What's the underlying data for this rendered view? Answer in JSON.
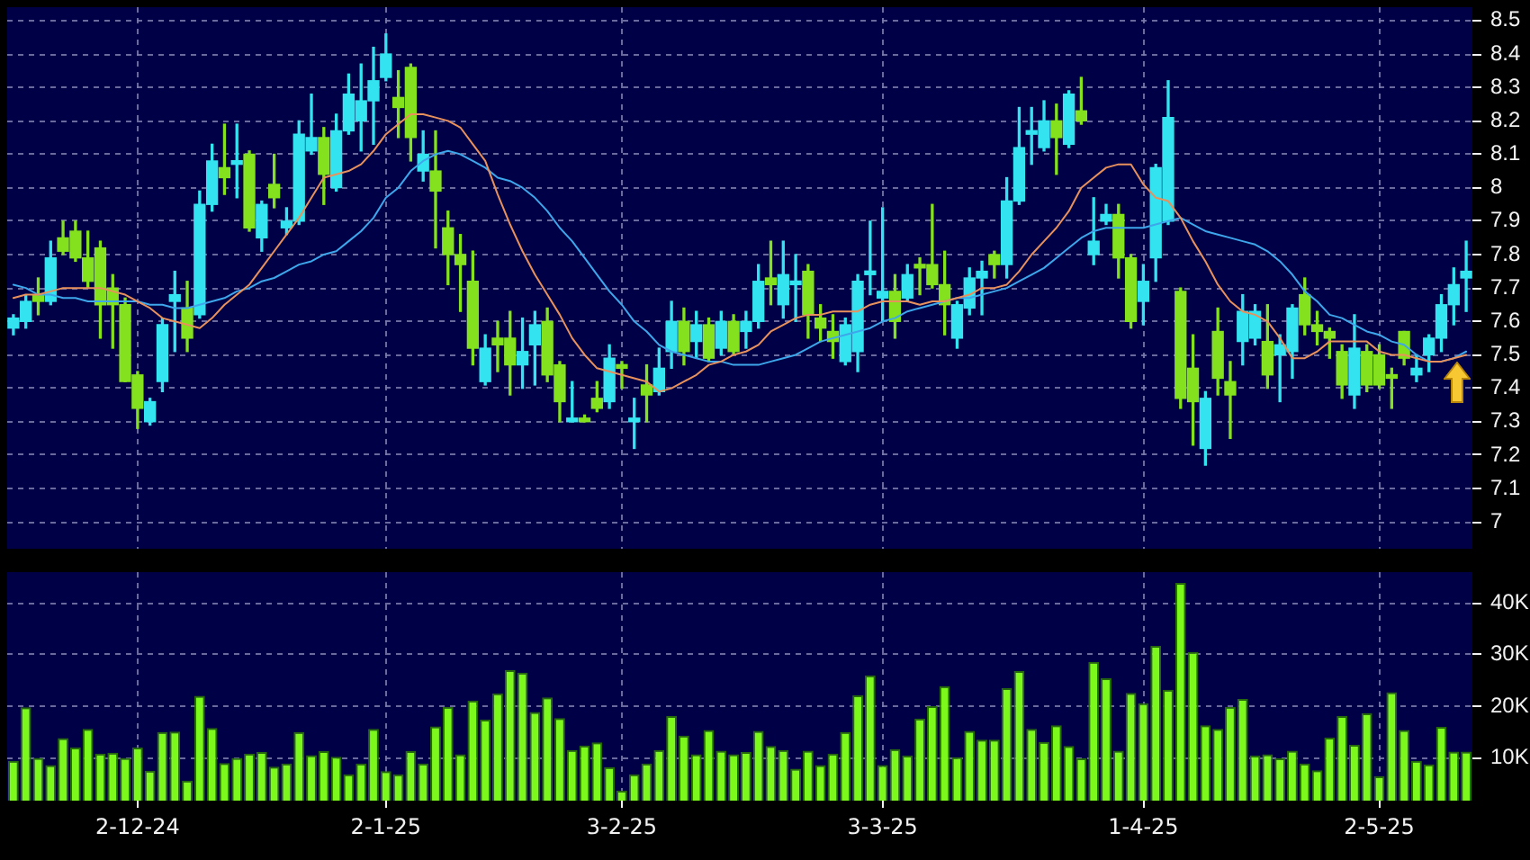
{
  "chart_data": [
    {
      "type": "candlestick",
      "categories": [
        null,
        null,
        null,
        null,
        null,
        null,
        null,
        null,
        null,
        null,
        null,
        null,
        null,
        null,
        null,
        null,
        null,
        null,
        null,
        null,
        null,
        null,
        null,
        null,
        null,
        null,
        null,
        null,
        null,
        null,
        null,
        null,
        null,
        null,
        null,
        null,
        null,
        null,
        null,
        null,
        null,
        null,
        null,
        null,
        null,
        null,
        null,
        null,
        null,
        null,
        null,
        null,
        null,
        null,
        null,
        null,
        null,
        null,
        null,
        null,
        null,
        null,
        null,
        null,
        null,
        null,
        null,
        null,
        null,
        null,
        null,
        null,
        null,
        null,
        null,
        null,
        null,
        null,
        null,
        null,
        null,
        null,
        null,
        null,
        null,
        null,
        null,
        null,
        null,
        null,
        null,
        null,
        null,
        null,
        null,
        null,
        null,
        null,
        null,
        null,
        null,
        null,
        null,
        null,
        null,
        null,
        null,
        null,
        null,
        null,
        null,
        null,
        null,
        null,
        null,
        null,
        null,
        null
      ],
      "ohlc": [
        [
          7.58,
          7.62,
          7.56,
          7.61
        ],
        [
          7.6,
          7.68,
          7.58,
          7.66
        ],
        [
          7.68,
          7.73,
          7.62,
          7.66
        ],
        [
          7.66,
          7.84,
          7.65,
          7.79
        ],
        [
          7.85,
          7.9,
          7.8,
          7.81
        ],
        [
          7.87,
          7.9,
          7.78,
          7.79
        ],
        [
          7.79,
          7.87,
          7.7,
          7.72
        ],
        [
          7.82,
          7.84,
          7.55,
          7.65
        ],
        [
          7.7,
          7.74,
          7.52,
          7.65
        ],
        [
          7.65,
          7.67,
          7.42,
          7.42
        ],
        [
          7.44,
          7.45,
          7.28,
          7.34
        ],
        [
          7.3,
          7.37,
          7.29,
          7.36
        ],
        [
          7.42,
          7.61,
          7.39,
          7.59
        ],
        [
          7.66,
          7.75,
          7.51,
          7.68
        ],
        [
          7.64,
          7.72,
          7.51,
          7.55
        ],
        [
          7.62,
          7.99,
          7.61,
          7.95
        ],
        [
          7.95,
          8.13,
          7.93,
          8.08
        ],
        [
          8.06,
          8.19,
          7.98,
          8.03
        ],
        [
          8.07,
          8.19,
          7.97,
          8.08
        ],
        [
          8.1,
          8.11,
          7.87,
          7.88
        ],
        [
          7.85,
          7.96,
          7.81,
          7.95
        ],
        [
          8.01,
          8.1,
          7.94,
          7.97
        ],
        [
          7.88,
          7.94,
          7.86,
          7.9
        ],
        [
          7.9,
          8.2,
          7.89,
          8.16
        ],
        [
          8.11,
          8.28,
          8.1,
          8.15
        ],
        [
          8.15,
          8.18,
          7.95,
          8.04
        ],
        [
          8.0,
          8.22,
          7.99,
          8.17
        ],
        [
          8.17,
          8.34,
          8.16,
          8.28
        ],
        [
          8.2,
          8.37,
          8.11,
          8.26
        ],
        [
          8.26,
          8.42,
          8.13,
          8.32
        ],
        [
          8.33,
          8.46,
          8.32,
          8.4
        ],
        [
          8.27,
          8.35,
          8.15,
          8.24
        ],
        [
          8.36,
          8.37,
          8.08,
          8.15
        ],
        [
          8.05,
          8.17,
          8.02,
          8.1
        ],
        [
          8.05,
          8.17,
          7.82,
          7.99
        ],
        [
          7.88,
          7.93,
          7.71,
          7.8
        ],
        [
          7.8,
          7.86,
          7.63,
          7.77
        ],
        [
          7.72,
          7.81,
          7.47,
          7.52
        ],
        [
          7.42,
          7.56,
          7.41,
          7.52
        ],
        [
          7.55,
          7.6,
          7.45,
          7.53
        ],
        [
          7.55,
          7.63,
          7.38,
          7.47
        ],
        [
          7.47,
          7.61,
          7.4,
          7.51
        ],
        [
          7.53,
          7.63,
          7.41,
          7.59
        ],
        [
          7.6,
          7.64,
          7.42,
          7.44
        ],
        [
          7.47,
          7.48,
          7.3,
          7.36
        ],
        [
          7.3,
          7.42,
          7.3,
          7.31
        ],
        [
          7.31,
          7.32,
          7.3,
          7.3
        ],
        [
          7.37,
          7.42,
          7.33,
          7.34
        ],
        [
          7.36,
          7.53,
          7.34,
          7.49
        ],
        [
          7.47,
          7.48,
          7.4,
          7.46
        ],
        [
          7.3,
          7.37,
          7.22,
          7.31
        ],
        [
          7.41,
          7.47,
          7.3,
          7.38
        ],
        [
          7.39,
          7.52,
          7.38,
          7.46
        ],
        [
          7.51,
          7.66,
          7.46,
          7.6
        ],
        [
          7.6,
          7.64,
          7.47,
          7.51
        ],
        [
          7.54,
          7.63,
          7.49,
          7.59
        ],
        [
          7.59,
          7.61,
          7.48,
          7.49
        ],
        [
          7.52,
          7.63,
          7.5,
          7.6
        ],
        [
          7.6,
          7.62,
          7.5,
          7.51
        ],
        [
          7.57,
          7.63,
          7.52,
          7.6
        ],
        [
          7.6,
          7.77,
          7.58,
          7.72
        ],
        [
          7.73,
          7.84,
          7.65,
          7.71
        ],
        [
          7.65,
          7.84,
          7.61,
          7.74
        ],
        [
          7.71,
          7.8,
          7.6,
          7.72
        ],
        [
          7.75,
          7.77,
          7.55,
          7.62
        ],
        [
          7.61,
          7.65,
          7.54,
          7.58
        ],
        [
          7.57,
          7.62,
          7.49,
          7.54
        ],
        [
          7.48,
          7.61,
          7.47,
          7.59
        ],
        [
          7.51,
          7.74,
          7.45,
          7.72
        ],
        [
          7.74,
          7.9,
          7.68,
          7.75
        ],
        [
          7.67,
          7.94,
          7.6,
          7.69
        ],
        [
          7.69,
          7.74,
          7.55,
          7.6
        ],
        [
          7.67,
          7.77,
          7.66,
          7.74
        ],
        [
          7.77,
          7.79,
          7.68,
          7.76
        ],
        [
          7.77,
          7.95,
          7.7,
          7.71
        ],
        [
          7.71,
          7.81,
          7.56,
          7.65
        ],
        [
          7.55,
          7.66,
          7.52,
          7.65
        ],
        [
          7.64,
          7.76,
          7.62,
          7.73
        ],
        [
          7.73,
          7.78,
          7.62,
          7.75
        ],
        [
          7.8,
          7.81,
          7.73,
          7.77
        ],
        [
          7.77,
          8.03,
          7.73,
          7.96
        ],
        [
          7.96,
          8.24,
          7.95,
          8.12
        ],
        [
          8.16,
          8.24,
          8.07,
          8.17
        ],
        [
          8.12,
          8.26,
          8.11,
          8.2
        ],
        [
          8.2,
          8.25,
          8.04,
          8.15
        ],
        [
          8.13,
          8.29,
          8.12,
          8.28
        ],
        [
          8.23,
          8.33,
          8.19,
          8.2
        ],
        [
          7.8,
          7.97,
          7.77,
          7.84
        ],
        [
          7.9,
          7.95,
          7.89,
          7.92
        ],
        [
          7.92,
          7.95,
          7.73,
          7.79
        ],
        [
          7.79,
          7.8,
          7.58,
          7.6
        ],
        [
          7.66,
          7.77,
          7.59,
          7.72
        ],
        [
          7.79,
          8.07,
          7.72,
          8.06
        ],
        [
          7.9,
          8.32,
          7.89,
          8.21
        ],
        [
          7.69,
          7.7,
          7.34,
          7.37
        ],
        [
          7.46,
          7.56,
          7.23,
          7.36
        ],
        [
          7.22,
          7.39,
          7.17,
          7.37
        ],
        [
          7.57,
          7.64,
          7.38,
          7.43
        ],
        [
          7.42,
          7.48,
          7.25,
          7.38
        ],
        [
          7.54,
          7.68,
          7.47,
          7.63
        ],
        [
          7.55,
          7.65,
          7.53,
          7.63
        ],
        [
          7.54,
          7.65,
          7.4,
          7.44
        ],
        [
          7.5,
          7.56,
          7.36,
          7.53
        ],
        [
          7.51,
          7.65,
          7.43,
          7.64
        ],
        [
          7.68,
          7.73,
          7.56,
          7.59
        ],
        [
          7.59,
          7.63,
          7.53,
          7.57
        ],
        [
          7.57,
          7.58,
          7.49,
          7.55
        ],
        [
          7.51,
          7.53,
          7.37,
          7.41
        ],
        [
          7.38,
          7.62,
          7.34,
          7.52
        ],
        [
          7.51,
          7.53,
          7.39,
          7.41
        ],
        [
          7.5,
          7.53,
          7.4,
          7.41
        ],
        [
          7.44,
          7.46,
          7.34,
          7.43
        ],
        [
          7.57,
          7.57,
          7.47,
          7.49
        ],
        [
          7.44,
          7.5,
          7.42,
          7.46
        ],
        [
          7.5,
          7.56,
          7.45,
          7.55
        ],
        [
          7.55,
          7.68,
          7.51,
          7.65
        ],
        [
          7.65,
          7.76,
          7.59,
          7.71
        ],
        [
          7.73,
          7.84,
          7.63,
          7.75
        ]
      ],
      "colors": [
        "#33e4f0",
        "#33e4f0",
        "#84e11e",
        "#33e4f0",
        "#84e11e",
        "#84e11e",
        "#84e11e",
        "#84e11e",
        "#84e11e",
        "#84e11e",
        "#84e11e",
        "#33e4f0",
        "#33e4f0",
        "#33e4f0",
        "#84e11e",
        "#33e4f0",
        "#33e4f0",
        "#84e11e",
        "#33e4f0",
        "#84e11e",
        "#33e4f0",
        "#84e11e",
        "#33e4f0",
        "#33e4f0",
        "#33e4f0",
        "#84e11e",
        "#33e4f0",
        "#33e4f0",
        "#33e4f0",
        "#33e4f0",
        "#33e4f0",
        "#84e11e",
        "#84e11e",
        "#33e4f0",
        "#84e11e",
        "#84e11e",
        "#84e11e",
        "#84e11e",
        "#33e4f0",
        "#84e11e",
        "#84e11e",
        "#33e4f0",
        "#33e4f0",
        "#84e11e",
        "#84e11e",
        "#33e4f0",
        "#84e11e",
        "#84e11e",
        "#33e4f0",
        "#84e11e",
        "#33e4f0",
        "#84e11e",
        "#33e4f0",
        "#33e4f0",
        "#84e11e",
        "#33e4f0",
        "#84e11e",
        "#33e4f0",
        "#84e11e",
        "#33e4f0",
        "#33e4f0",
        "#84e11e",
        "#33e4f0",
        "#33e4f0",
        "#84e11e",
        "#84e11e",
        "#84e11e",
        "#33e4f0",
        "#33e4f0",
        "#33e4f0",
        "#33e4f0",
        "#84e11e",
        "#33e4f0",
        "#84e11e",
        "#84e11e",
        "#84e11e",
        "#33e4f0",
        "#33e4f0",
        "#33e4f0",
        "#84e11e",
        "#33e4f0",
        "#33e4f0",
        "#33e4f0",
        "#33e4f0",
        "#84e11e",
        "#33e4f0",
        "#84e11e",
        "#33e4f0",
        "#33e4f0",
        "#84e11e",
        "#84e11e",
        "#33e4f0",
        "#33e4f0",
        "#33e4f0",
        "#84e11e",
        "#84e11e",
        "#33e4f0",
        "#84e11e",
        "#84e11e",
        "#33e4f0",
        "#33e4f0",
        "#84e11e",
        "#33e4f0",
        "#33e4f0",
        "#84e11e",
        "#84e11e",
        "#84e11e",
        "#84e11e",
        "#33e4f0",
        "#84e11e",
        "#84e11e",
        "#84e11e",
        "#84e11e",
        "#33e4f0",
        "#33e4f0",
        "#33e4f0",
        "#33e4f0",
        "#33e4f0"
      ],
      "series": [
        {
          "type": "line",
          "color": "#e8915c",
          "values": [
            7.67,
            7.68,
            7.68,
            7.69,
            7.7,
            7.7,
            7.7,
            7.7,
            7.69,
            7.68,
            7.66,
            7.64,
            7.61,
            7.6,
            7.59,
            7.58,
            7.61,
            7.65,
            7.68,
            7.71,
            7.76,
            7.81,
            7.86,
            7.91,
            7.97,
            8.03,
            8.04,
            8.05,
            8.07,
            8.11,
            8.16,
            8.19,
            8.22,
            8.22,
            8.21,
            8.2,
            8.18,
            8.13,
            8.08,
            7.98,
            7.89,
            7.81,
            7.74,
            7.68,
            7.62,
            7.55,
            7.5,
            7.46,
            7.45,
            7.44,
            7.43,
            7.42,
            7.39,
            7.4,
            7.42,
            7.44,
            7.47,
            7.48,
            7.5,
            7.51,
            7.53,
            7.57,
            7.59,
            7.61,
            7.62,
            7.62,
            7.63,
            7.63,
            7.63,
            7.65,
            7.66,
            7.66,
            7.66,
            7.65,
            7.66,
            7.66,
            7.67,
            7.68,
            7.7,
            7.7,
            7.71,
            7.75,
            7.8,
            7.84,
            7.88,
            7.93,
            8.0,
            8.03,
            8.06,
            8.07,
            8.07,
            8.01,
            7.97,
            7.96,
            7.91,
            7.84,
            7.78,
            7.71,
            7.66,
            7.63,
            7.62,
            7.6,
            7.55,
            7.49,
            7.49,
            7.51,
            7.54,
            7.54,
            7.54,
            7.54,
            7.51,
            7.5,
            7.5,
            7.49,
            7.48,
            7.48,
            7.49,
            7.5
          ]
        },
        {
          "type": "line",
          "color": "#3ea6ea",
          "values": [
            7.71,
            7.7,
            7.68,
            7.68,
            7.67,
            7.67,
            7.66,
            7.66,
            7.66,
            7.66,
            7.66,
            7.65,
            7.65,
            7.64,
            7.64,
            7.65,
            7.66,
            7.67,
            7.69,
            7.7,
            7.72,
            7.73,
            7.75,
            7.77,
            7.78,
            7.8,
            7.81,
            7.84,
            7.87,
            7.91,
            7.97,
            8.0,
            8.05,
            8.08,
            8.1,
            8.11,
            8.1,
            8.08,
            8.06,
            8.03,
            8.02,
            8.0,
            7.97,
            7.93,
            7.88,
            7.84,
            7.79,
            7.74,
            7.69,
            7.65,
            7.6,
            7.57,
            7.53,
            7.51,
            7.5,
            7.49,
            7.48,
            7.48,
            7.47,
            7.47,
            7.47,
            7.48,
            7.49,
            7.5,
            7.52,
            7.54,
            7.55,
            7.56,
            7.57,
            7.58,
            7.6,
            7.61,
            7.63,
            7.64,
            7.65,
            7.66,
            7.67,
            7.67,
            7.68,
            7.69,
            7.7,
            7.72,
            7.74,
            7.76,
            7.79,
            7.82,
            7.85,
            7.87,
            7.88,
            7.88,
            7.88,
            7.88,
            7.89,
            7.9,
            7.91,
            7.89,
            7.87,
            7.86,
            7.85,
            7.84,
            7.83,
            7.81,
            7.78,
            7.74,
            7.69,
            7.66,
            7.62,
            7.61,
            7.59,
            7.57,
            7.56,
            7.54,
            7.53,
            7.5,
            7.48,
            7.48,
            7.49,
            7.51
          ]
        }
      ],
      "ylim": [
        6.92,
        8.54
      ],
      "yticks": [
        7,
        7.1,
        7.2,
        7.3,
        7.4,
        7.5,
        7.6,
        7.7,
        7.8,
        7.9,
        8,
        8.1,
        8.2,
        8.3,
        8.4,
        8.5
      ],
      "grid": true,
      "tick_labels": "y"
    },
    {
      "type": "bar",
      "categories": [
        null,
        null,
        null,
        null,
        null,
        null,
        null,
        null,
        null,
        null,
        "2-12-24",
        null,
        null,
        null,
        null,
        null,
        null,
        null,
        null,
        null,
        null,
        null,
        null,
        null,
        null,
        null,
        null,
        null,
        null,
        null,
        "2-1-25",
        null,
        null,
        null,
        null,
        null,
        null,
        null,
        null,
        null,
        null,
        null,
        null,
        null,
        null,
        null,
        null,
        null,
        null,
        "3-2-25",
        null,
        null,
        null,
        null,
        null,
        null,
        null,
        null,
        null,
        null,
        null,
        null,
        null,
        null,
        null,
        null,
        null,
        null,
        null,
        null,
        "3-3-25",
        null,
        null,
        null,
        null,
        null,
        null,
        null,
        null,
        null,
        null,
        null,
        null,
        null,
        null,
        null,
        null,
        null,
        null,
        null,
        null,
        "1-4-25",
        null,
        null,
        null,
        null,
        null,
        null,
        null,
        null,
        null,
        null,
        null,
        null,
        null,
        null,
        null,
        null,
        null,
        null,
        "2-5-25",
        null,
        null,
        null,
        null,
        null,
        null,
        null
      ],
      "values": [
        9400,
        19800,
        10000,
        8600,
        13800,
        12000,
        15600,
        10800,
        11000,
        10000,
        12000,
        7500,
        15000,
        15100,
        5600,
        22000,
        15800,
        9000,
        10000,
        10800,
        11100,
        8300,
        8900,
        15000,
        10500,
        11300,
        10200,
        6800,
        8900,
        15600,
        7400,
        6800,
        11300,
        8900,
        16100,
        19900,
        10700,
        21100,
        17400,
        22500,
        27000,
        26500,
        18900,
        21700,
        17700,
        11500,
        12400,
        13000,
        8200,
        3600,
        6800,
        8900,
        11500,
        18100,
        14300,
        10700,
        15400,
        11400,
        10700,
        11100,
        15200,
        12300,
        11500,
        7900,
        11400,
        8600,
        10800,
        15000,
        22100,
        26000,
        8600,
        11700,
        10400,
        17600,
        20000,
        23900,
        10100,
        15200,
        13500,
        13500,
        23500,
        26800,
        15600,
        13100,
        16300,
        12300,
        9900,
        28600,
        25400,
        11400,
        22600,
        20600,
        31700,
        23200,
        43900,
        30500,
        16300,
        15600,
        19900,
        21400,
        10400,
        10700,
        9900,
        11400,
        8900,
        7600,
        13900,
        18100,
        12500,
        18600,
        6400,
        22700,
        15400,
        9400,
        8700,
        16000,
        11200,
        11200
      ],
      "color": "#7cf81c",
      "ylim": [
        1700,
        46000
      ],
      "yticks": [
        {
          "value": 10000,
          "label": "10K"
        },
        {
          "value": 20000,
          "label": "20K"
        },
        {
          "value": 30000,
          "label": "30K"
        },
        {
          "value": 40000,
          "label": "40K"
        }
      ],
      "grid": true
    }
  ]
}
